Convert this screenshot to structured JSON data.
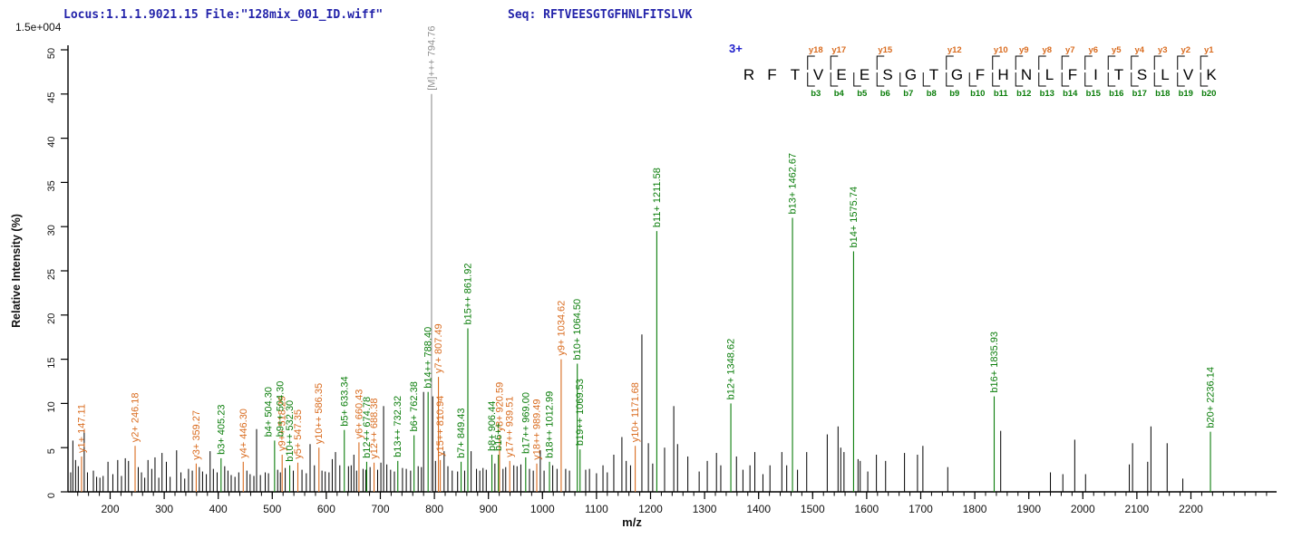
{
  "header": {
    "locus_file": "Locus:1.1.1.9021.15 File:\"128mix_001_ID.wiff\"",
    "seq_line": "Seq: RFTVEESGTGFHNLFITSLVK",
    "scale_note": "1.5e+004"
  },
  "axes": {
    "x_label": "m/z",
    "y_label": "Relative  Intensity (%)",
    "x_major_ticks": [
      200,
      300,
      400,
      500,
      600,
      700,
      800,
      900,
      1000,
      1100,
      1200,
      1300,
      1400,
      1500,
      1600,
      1700,
      1800,
      1900,
      2000,
      2100,
      2200
    ],
    "x_minor_step": 20,
    "x_range": [
      122,
      2358
    ],
    "y_ticks": [
      0,
      5,
      10,
      15,
      20,
      25,
      30,
      35,
      40,
      45,
      50
    ],
    "y_max_pct": 50
  },
  "colors": {
    "y_ion": "#d96b1e",
    "b_ion": "#0a7d0a",
    "precursor": "#909090",
    "peak": "#000000",
    "header_blue": "#2323aa",
    "charge_blue": "#2020cc",
    "axis": "#000000"
  },
  "ladder": {
    "charge": "3+",
    "residues": [
      "R",
      "F",
      "T",
      "V",
      "E",
      "E",
      "S",
      "G",
      "T",
      "G",
      "F",
      "H",
      "N",
      "L",
      "F",
      "I",
      "T",
      "S",
      "L",
      "V",
      "K"
    ],
    "cleavages": [
      {
        "after": 3,
        "y": "y18",
        "b": "b3"
      },
      {
        "after": 4,
        "y": "y17",
        "b": "b4"
      },
      {
        "after": 5,
        "y": null,
        "b": "b5"
      },
      {
        "after": 6,
        "y": "y15",
        "b": "b6"
      },
      {
        "after": 7,
        "y": null,
        "b": "b7"
      },
      {
        "after": 8,
        "y": null,
        "b": "b8"
      },
      {
        "after": 9,
        "y": "y12",
        "b": "b9"
      },
      {
        "after": 10,
        "y": null,
        "b": "b10"
      },
      {
        "after": 11,
        "y": "y10",
        "b": "b11"
      },
      {
        "after": 12,
        "y": "y9",
        "b": "b12"
      },
      {
        "after": 13,
        "y": "y8",
        "b": "b13"
      },
      {
        "after": 14,
        "y": "y7",
        "b": "b14"
      },
      {
        "after": 15,
        "y": "y6",
        "b": "b15"
      },
      {
        "after": 16,
        "y": "y5",
        "b": "b16"
      },
      {
        "after": 17,
        "y": "y4",
        "b": "b17"
      },
      {
        "after": 18,
        "y": "y3",
        "b": "b18"
      },
      {
        "after": 19,
        "y": "y2",
        "b": "b19"
      },
      {
        "after": 20,
        "y": "y1",
        "b": "b20"
      }
    ]
  },
  "chart_data": {
    "type": "bar",
    "title": "MS/MS fragmentation spectrum (stick plot)",
    "xlabel": "m/z",
    "ylabel": "Relative Intensity (%)",
    "x_range": [
      122,
      2358
    ],
    "ylim_pct": [
      0,
      50
    ],
    "intensity_full_scale": "1.5e+004",
    "precursor_peak": {
      "label": "[M]+++ 794.76",
      "mz": 794.76,
      "pct": 45,
      "ion": "precursor"
    },
    "y_ion_peaks": [
      {
        "label": "y1+ 147.11",
        "mz": 147.11,
        "pct": 4.0
      },
      {
        "label": "y2+ 246.18",
        "mz": 246.18,
        "pct": 5.2
      },
      {
        "label": "y3+ 359.27",
        "mz": 359.27,
        "pct": 3.2
      },
      {
        "label": "y4+ 446.30",
        "mz": 446.3,
        "pct": 3.4
      },
      {
        "label": "y9++ 518.29",
        "mz": 518.29,
        "pct": 4.2
      },
      {
        "label": "y5+ 547.35",
        "mz": 547.35,
        "pct": 3.3
      },
      {
        "label": "y10++ 586.35",
        "mz": 586.35,
        "pct": 5.0
      },
      {
        "label": "y6+ 660.43",
        "mz": 660.43,
        "pct": 5.6
      },
      {
        "label": "y12++ 688.38",
        "mz": 688.38,
        "pct": 3.3
      },
      {
        "label": "y7+ 807.49",
        "mz": 807.49,
        "pct": 13.0
      },
      {
        "label": "y15++ 810.94",
        "mz": 810.94,
        "pct": 3.6
      },
      {
        "label": "y8+ 920.59",
        "mz": 920.59,
        "pct": 6.4
      },
      {
        "label": "y17++ 939.51",
        "mz": 939.51,
        "pct": 3.5
      },
      {
        "label": "y18++ 989.49",
        "mz": 989.49,
        "pct": 3.2
      },
      {
        "label": "y9+ 1034.62",
        "mz": 1034.62,
        "pct": 15.0
      },
      {
        "label": "y10+ 1171.68",
        "mz": 1171.68,
        "pct": 5.2
      }
    ],
    "b_ion_peaks": [
      {
        "label": "b3+ 405.23",
        "mz": 405.23,
        "pct": 3.8
      },
      {
        "label": "b4+ 504.30",
        "mz": 504.3,
        "pct": 5.8,
        "dx": -7
      },
      {
        "label": "b9++ 504.30",
        "mz": 504.3,
        "pct": 5.8,
        "dx": 6,
        "line": false
      },
      {
        "label": "b10++ 532.30",
        "mz": 532.3,
        "pct": 3.0
      },
      {
        "label": "b5+ 633.34",
        "mz": 633.34,
        "pct": 7.0
      },
      {
        "label": "b12++ 674.78",
        "mz": 674.78,
        "pct": 3.4
      },
      {
        "label": "b13++ 732.32",
        "mz": 732.32,
        "pct": 3.5
      },
      {
        "label": "b6+ 762.38",
        "mz": 762.38,
        "pct": 6.4
      },
      {
        "label": "b14++ 788.40",
        "mz": 788.4,
        "pct": 11.3
      },
      {
        "label": "b7+ 849.43",
        "mz": 849.43,
        "pct": 3.4
      },
      {
        "label": "b15++ 861.92",
        "mz": 861.92,
        "pct": 18.5
      },
      {
        "label": "b8+ 906.44",
        "mz": 906.44,
        "pct": 4.2
      },
      {
        "label": "b16++",
        "mz": 918.47,
        "pct": 4.2
      },
      {
        "label": "b17++ 969.00",
        "mz": 969.0,
        "pct": 3.9
      },
      {
        "label": "b18++ 1012.99",
        "mz": 1012.99,
        "pct": 3.4
      },
      {
        "label": "b10+ 1064.50",
        "mz": 1064.5,
        "pct": 14.5
      },
      {
        "label": "b19++ 1069.53",
        "mz": 1069.53,
        "pct": 4.8
      },
      {
        "label": "b11+ 1211.58",
        "mz": 1211.58,
        "pct": 29.5
      },
      {
        "label": "b12+ 1348.62",
        "mz": 1348.62,
        "pct": 10.0
      },
      {
        "label": "b13+ 1462.67",
        "mz": 1462.67,
        "pct": 31.0
      },
      {
        "label": "b14+ 1575.74",
        "mz": 1575.74,
        "pct": 27.2
      },
      {
        "label": "b16+ 1835.93",
        "mz": 1835.93,
        "pct": 10.8
      },
      {
        "label": "b20+ 2236.14",
        "mz": 2236.14,
        "pct": 6.8
      }
    ],
    "unassigned_peaks": [
      [
        127,
        2.2
      ],
      [
        131,
        5.8
      ],
      [
        136,
        3.6
      ],
      [
        141,
        2.9
      ],
      [
        152,
        7.0
      ],
      [
        158,
        2.2
      ],
      [
        169,
        2.4
      ],
      [
        175,
        1.7
      ],
      [
        181,
        1.6
      ],
      [
        187,
        1.8
      ],
      [
        196,
        3.4
      ],
      [
        205,
        2.0
      ],
      [
        214,
        3.6
      ],
      [
        221,
        1.8
      ],
      [
        228,
        3.8
      ],
      [
        234,
        3.5
      ],
      [
        252,
        2.8
      ],
      [
        258,
        2.2
      ],
      [
        264,
        1.6
      ],
      [
        270,
        3.6
      ],
      [
        277,
        2.6
      ],
      [
        283,
        3.9
      ],
      [
        290,
        1.6
      ],
      [
        296,
        4.4
      ],
      [
        304,
        3.4
      ],
      [
        311,
        1.7
      ],
      [
        323,
        4.7
      ],
      [
        331,
        2.2
      ],
      [
        338,
        1.5
      ],
      [
        345,
        2.6
      ],
      [
        352,
        2.4
      ],
      [
        365,
        2.8
      ],
      [
        371,
        2.3
      ],
      [
        378,
        2.0
      ],
      [
        385,
        4.6
      ],
      [
        391,
        2.6
      ],
      [
        398,
        2.2
      ],
      [
        412,
        2.9
      ],
      [
        418,
        2.4
      ],
      [
        424,
        1.9
      ],
      [
        431,
        1.7
      ],
      [
        438,
        2.2
      ],
      [
        453,
        2.4
      ],
      [
        459,
        2.0
      ],
      [
        466,
        1.8
      ],
      [
        471,
        7.1
      ],
      [
        478,
        1.9
      ],
      [
        487,
        2.2
      ],
      [
        493,
        2.1
      ],
      [
        510,
        2.5
      ],
      [
        515,
        2.2
      ],
      [
        524,
        2.7
      ],
      [
        539,
        2.4
      ],
      [
        555,
        2.5
      ],
      [
        563,
        2.1
      ],
      [
        570,
        5.4
      ],
      [
        578,
        3.0
      ],
      [
        592,
        2.4
      ],
      [
        598,
        2.3
      ],
      [
        605,
        2.2
      ],
      [
        611,
        3.7
      ],
      [
        617,
        4.5
      ],
      [
        625,
        3.0
      ],
      [
        641,
        2.9
      ],
      [
        646,
        3.0
      ],
      [
        651,
        4.2
      ],
      [
        656,
        2.4
      ],
      [
        668,
        2.6
      ],
      [
        673,
        2.5
      ],
      [
        681,
        2.8
      ],
      [
        695,
        2.5
      ],
      [
        701,
        3.3
      ],
      [
        706,
        9.7
      ],
      [
        712,
        3.1
      ],
      [
        719,
        2.5
      ],
      [
        726,
        2.3
      ],
      [
        741,
        2.7
      ],
      [
        748,
        2.6
      ],
      [
        756,
        2.4
      ],
      [
        770,
        2.9
      ],
      [
        776,
        2.8
      ],
      [
        780,
        11.3
      ],
      [
        797,
        10.8
      ],
      [
        802,
        3.5
      ],
      [
        818,
        4.6
      ],
      [
        825,
        2.9
      ],
      [
        833,
        2.4
      ],
      [
        843,
        2.3
      ],
      [
        856,
        2.4
      ],
      [
        868,
        4.6
      ],
      [
        878,
        2.6
      ],
      [
        884,
        2.4
      ],
      [
        890,
        2.7
      ],
      [
        896,
        2.5
      ],
      [
        912,
        3.2
      ],
      [
        927,
        2.6
      ],
      [
        932,
        2.8
      ],
      [
        947,
        3.0
      ],
      [
        953,
        2.9
      ],
      [
        960,
        3.1
      ],
      [
        976,
        2.6
      ],
      [
        983,
        2.4
      ],
      [
        996,
        4.7
      ],
      [
        1003,
        2.4
      ],
      [
        1019,
        3.0
      ],
      [
        1027,
        2.6
      ],
      [
        1043,
        2.6
      ],
      [
        1050,
        2.4
      ],
      [
        1080,
        2.5
      ],
      [
        1087,
        2.6
      ],
      [
        1100,
        2.1
      ],
      [
        1112,
        3.0
      ],
      [
        1120,
        2.2
      ],
      [
        1132,
        4.2
      ],
      [
        1147,
        6.2
      ],
      [
        1155,
        3.5
      ],
      [
        1163,
        3.0
      ],
      [
        1184,
        17.8
      ],
      [
        1196,
        5.5
      ],
      [
        1204,
        3.2
      ],
      [
        1226,
        5.0
      ],
      [
        1243,
        9.7
      ],
      [
        1250,
        5.4
      ],
      [
        1269,
        4.0
      ],
      [
        1290,
        2.3
      ],
      [
        1305,
        3.5
      ],
      [
        1322,
        4.4
      ],
      [
        1330,
        3.0
      ],
      [
        1359,
        4.0
      ],
      [
        1371,
        2.5
      ],
      [
        1384,
        3.0
      ],
      [
        1393,
        4.5
      ],
      [
        1408,
        2.0
      ],
      [
        1421,
        3.0
      ],
      [
        1443,
        4.5
      ],
      [
        1452,
        3.0
      ],
      [
        1472,
        2.5
      ],
      [
        1489,
        4.5
      ],
      [
        1527,
        6.5
      ],
      [
        1547,
        7.4
      ],
      [
        1552,
        5.0
      ],
      [
        1558,
        4.5
      ],
      [
        1584,
        3.7
      ],
      [
        1588,
        3.5
      ],
      [
        1602,
        2.3
      ],
      [
        1618,
        4.2
      ],
      [
        1635,
        3.5
      ],
      [
        1670,
        4.4
      ],
      [
        1694,
        4.2
      ],
      [
        1704,
        5.2
      ],
      [
        1750,
        2.8
      ],
      [
        1848,
        6.9
      ],
      [
        1940,
        2.2
      ],
      [
        1963,
        2.0
      ],
      [
        1985,
        5.9
      ],
      [
        2005,
        2.0
      ],
      [
        2086,
        3.1
      ],
      [
        2092,
        5.5
      ],
      [
        2120,
        3.4
      ],
      [
        2126,
        7.4
      ],
      [
        2156,
        5.5
      ],
      [
        2185,
        1.5
      ]
    ]
  }
}
